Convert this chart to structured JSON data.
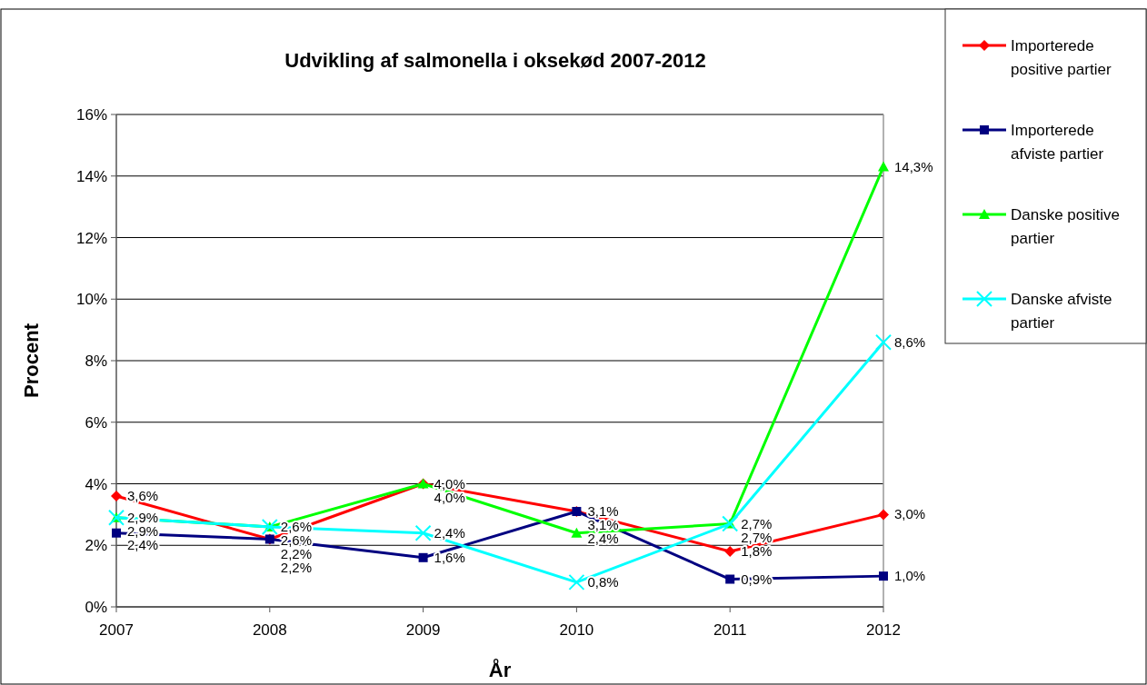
{
  "chart_data": {
    "type": "line",
    "title": "Udvikling af salmonella i oksekød 2007-2012",
    "xlabel": "År",
    "ylabel": "Procent",
    "categories": [
      "2007",
      "2008",
      "2009",
      "2010",
      "2011",
      "2012"
    ],
    "ylim": [
      0,
      16
    ],
    "yticks": [
      {
        "value": 0,
        "label": "0%"
      },
      {
        "value": 2,
        "label": "2%"
      },
      {
        "value": 4,
        "label": "4%"
      },
      {
        "value": 6,
        "label": "6%"
      },
      {
        "value": 8,
        "label": "8%"
      },
      {
        "value": 10,
        "label": "10%"
      },
      {
        "value": 12,
        "label": "12%"
      },
      {
        "value": 14,
        "label": "14%"
      },
      {
        "value": 16,
        "label": "16%"
      }
    ],
    "grid": "y",
    "legend": "right",
    "line_style": "solid",
    "series": [
      {
        "name": "Importerede positive partier",
        "color": "#ff0000",
        "marker": "diamond",
        "values": [
          3.6,
          2.2,
          4.0,
          3.1,
          1.8,
          3.0
        ],
        "value_labels": [
          "3,6%",
          "2,2%",
          "4,0%",
          "3,1%",
          "1,8%",
          "3,0%"
        ]
      },
      {
        "name": "Importerede afviste partier",
        "color": "#000080",
        "marker": "square",
        "values": [
          2.4,
          2.2,
          1.6,
          3.1,
          0.9,
          1.0
        ],
        "value_labels": [
          "2,4%",
          "2,2%",
          "1,6%",
          "3,1%",
          "0,9%",
          "1,0%"
        ]
      },
      {
        "name": "Danske positive partier",
        "color": "#00ff00",
        "marker": "triangle",
        "values": [
          2.9,
          2.6,
          4.0,
          2.4,
          2.7,
          14.3
        ],
        "value_labels": [
          "2,9%",
          "2,6%",
          "4,0%",
          "2,4%",
          "2,7%",
          "14,3%"
        ]
      },
      {
        "name": "Danske afviste partier",
        "color": "#00ffff",
        "marker": "cross",
        "values": [
          2.9,
          2.6,
          2.4,
          0.8,
          2.7,
          8.6
        ],
        "value_labels": [
          "2,9%",
          "2,6%",
          "2,4%",
          "0,8%",
          "2,7%",
          "8,6%"
        ]
      }
    ]
  }
}
